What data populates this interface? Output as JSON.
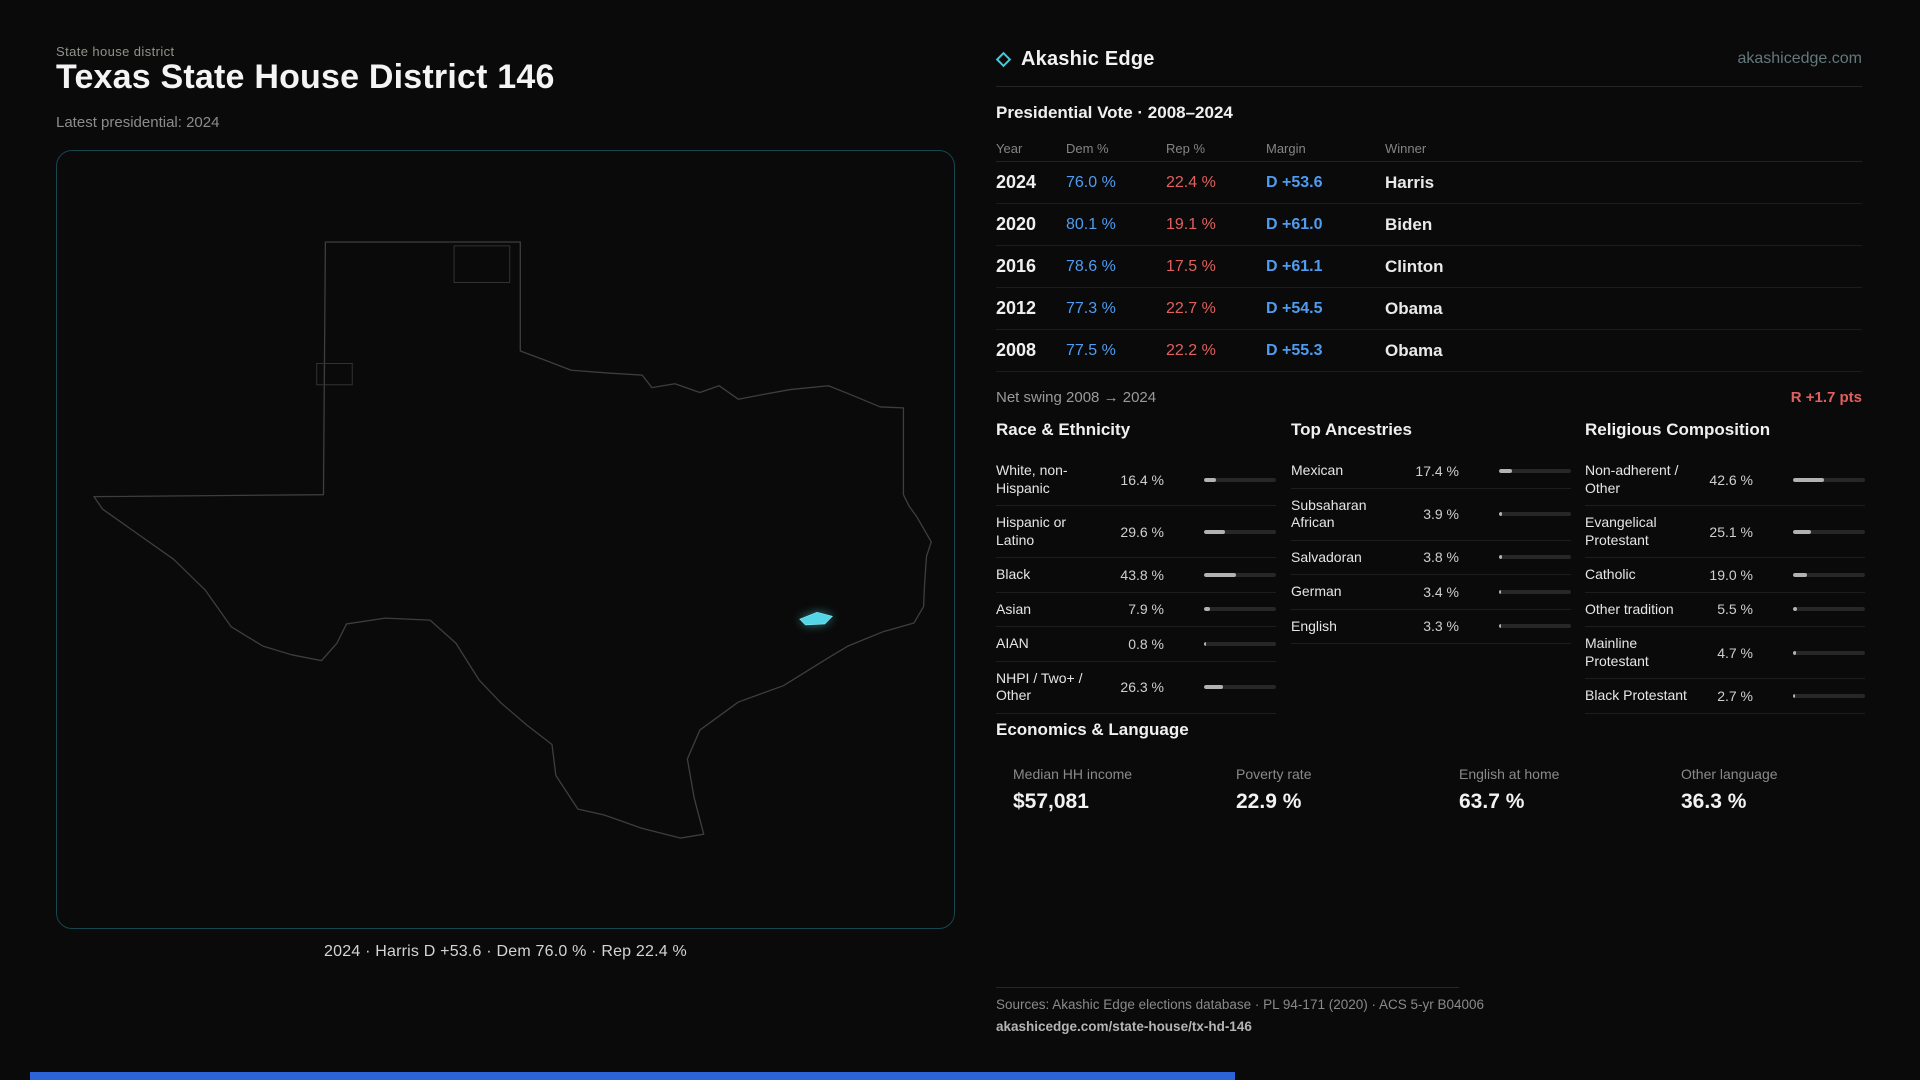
{
  "meta": {
    "accent_cyan": "#53d7e8",
    "dem_blue": "#4f9cf0",
    "rep_red": "#e06060",
    "background": "#0a0a0a"
  },
  "page": {
    "eyebrow": "State house district",
    "title": "Texas State House District 146",
    "subtitle": "Latest presidential: 2024",
    "map_caption": "2024 · Harris D +53.6 · Dem 76.0 % · Rep 22.4 %"
  },
  "brand": {
    "name": "Akashic Edge",
    "site": "akashicedge.com",
    "logo_icon": "diamond-icon"
  },
  "vote_table": {
    "title": "Presidential Vote · 2008–2024",
    "columns": {
      "year": "Year",
      "dem": "Dem %",
      "rep": "Rep %",
      "margin": "Margin",
      "winner": "Winner"
    },
    "rows": [
      {
        "year": "2024",
        "dem": "76.0 %",
        "rep": "22.4 %",
        "margin": "D +53.6",
        "winner": "Harris"
      },
      {
        "year": "2020",
        "dem": "80.1 %",
        "rep": "19.1 %",
        "margin": "D +61.0",
        "winner": "Biden"
      },
      {
        "year": "2016",
        "dem": "78.6 %",
        "rep": "17.5 %",
        "margin": "D +61.1",
        "winner": "Clinton"
      },
      {
        "year": "2012",
        "dem": "77.3 %",
        "rep": "22.7 %",
        "margin": "D +54.5",
        "winner": "Obama"
      },
      {
        "year": "2008",
        "dem": "77.5 %",
        "rep": "22.2 %",
        "margin": "D +55.3",
        "winner": "Obama"
      }
    ],
    "net_swing_label": "Net swing 2008 → 2024",
    "net_swing_value": "R +1.7 pts"
  },
  "demographics": {
    "race": {
      "title": "Race & Ethnicity",
      "rows": [
        {
          "label": "White, non-Hispanic",
          "value": "16.4 %",
          "pct": 16.4
        },
        {
          "label": "Hispanic or Latino",
          "value": "29.6 %",
          "pct": 29.6
        },
        {
          "label": "Black",
          "value": "43.8 %",
          "pct": 43.8
        },
        {
          "label": "Asian",
          "value": "7.9 %",
          "pct": 7.9
        },
        {
          "label": "AIAN",
          "value": "0.8 %",
          "pct": 0.8
        },
        {
          "label": "NHPI / Two+ / Other",
          "value": "26.3 %",
          "pct": 26.3
        }
      ]
    },
    "ancestries": {
      "title": "Top Ancestries",
      "rows": [
        {
          "label": "Mexican",
          "value": "17.4 %",
          "pct": 17.4
        },
        {
          "label": "Subsaharan African",
          "value": "3.9 %",
          "pct": 3.9
        },
        {
          "label": "Salvadoran",
          "value": "3.8 %",
          "pct": 3.8
        },
        {
          "label": "German",
          "value": "3.4 %",
          "pct": 3.4
        },
        {
          "label": "English",
          "value": "3.3 %",
          "pct": 3.3
        }
      ]
    },
    "religion": {
      "title": "Religious Composition",
      "rows": [
        {
          "label": "Non-adherent / Other",
          "value": "42.6 %",
          "pct": 42.6
        },
        {
          "label": "Evangelical Protestant",
          "value": "25.1 %",
          "pct": 25.1
        },
        {
          "label": "Catholic",
          "value": "19.0 %",
          "pct": 19.0
        },
        {
          "label": "Other tradition",
          "value": "5.5 %",
          "pct": 5.5
        },
        {
          "label": "Mainline Protestant",
          "value": "4.7 %",
          "pct": 4.7
        },
        {
          "label": "Black Protestant",
          "value": "2.7 %",
          "pct": 2.7
        }
      ]
    }
  },
  "economics": {
    "title": "Economics & Language",
    "stats": [
      {
        "label": "Median HH income",
        "value": "$57,081"
      },
      {
        "label": "Poverty rate",
        "value": "22.9 %"
      },
      {
        "label": "English at home",
        "value": "63.7 %"
      },
      {
        "label": "Other language",
        "value": "36.3 %"
      }
    ]
  },
  "footer": {
    "sources": "Sources: Akashic Edge elections database · PL 94-171 (2020) · ACS 5-yr B04006",
    "permalink": "akashicedge.com/state-house/tx-hd-146"
  },
  "chart_data": {
    "type": "table",
    "title": "Presidential Vote · 2008–2024",
    "columns": [
      "Year",
      "Dem %",
      "Rep %",
      "Margin",
      "Winner"
    ],
    "rows": [
      [
        2024,
        76.0,
        22.4,
        "D +53.6",
        "Harris"
      ],
      [
        2020,
        80.1,
        19.1,
        "D +61.0",
        "Biden"
      ],
      [
        2016,
        78.6,
        17.5,
        "D +61.1",
        "Clinton"
      ],
      [
        2012,
        77.3,
        22.7,
        "D +54.5",
        "Obama"
      ],
      [
        2008,
        77.5,
        22.2,
        "D +55.3",
        "Obama"
      ]
    ],
    "net_swing": "R +1.7 pts"
  }
}
